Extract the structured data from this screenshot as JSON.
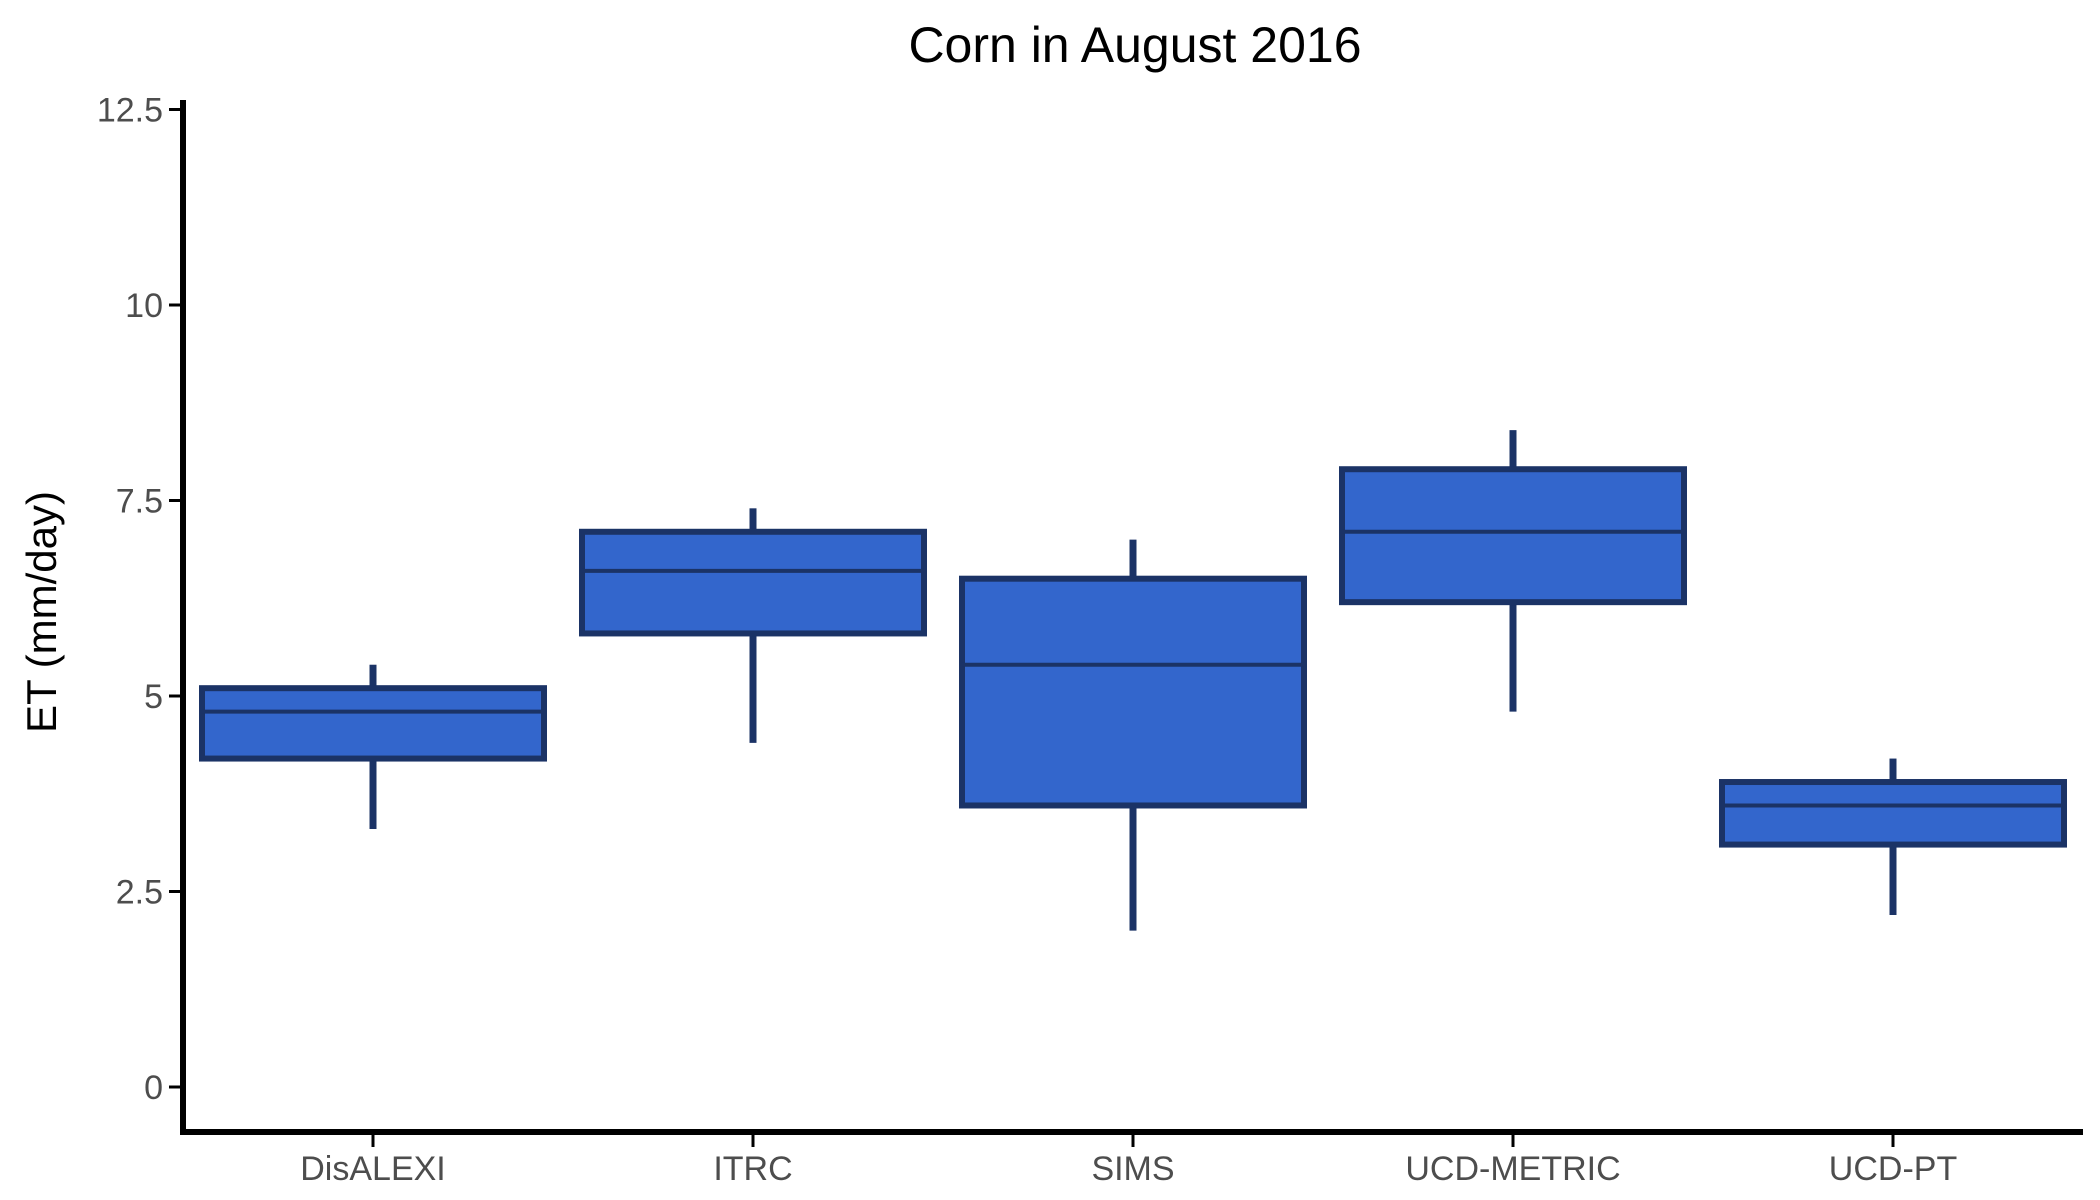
{
  "chart_data": {
    "type": "box",
    "title": "Corn in August 2016",
    "xlabel": "",
    "ylabel": "ET (mm/day)",
    "ylim": [
      0,
      12.5
    ],
    "y_ticks": [
      "0",
      "2.5",
      "5",
      "7.5",
      "10",
      "12.5"
    ],
    "grid": false,
    "categories": [
      "DisALEXI",
      "ITRC",
      "SIMS",
      "UCD-METRIC",
      "UCD-PT"
    ],
    "series": [
      {
        "boxes": [
          {
            "category": "DisALEXI",
            "min": 3.3,
            "q1": 4.2,
            "median": 4.8,
            "q3": 5.1,
            "max": 5.4
          },
          {
            "category": "ITRC",
            "min": 4.4,
            "q1": 5.8,
            "median": 6.6,
            "q3": 7.1,
            "max": 7.4
          },
          {
            "category": "SIMS",
            "min": 2.0,
            "q1": 3.6,
            "median": 5.4,
            "q3": 6.5,
            "max": 7.0
          },
          {
            "category": "UCD-METRIC",
            "min": 4.8,
            "q1": 6.2,
            "median": 7.1,
            "q3": 7.9,
            "max": 8.4
          },
          {
            "category": "UCD-PT",
            "min": 2.2,
            "q1": 3.1,
            "median": 3.6,
            "q3": 3.9,
            "max": 4.2
          }
        ]
      }
    ],
    "colors": {
      "fill": "#3366cc",
      "stroke": "#1b3366",
      "axis": "#000000",
      "tick_text": "#4d4d4d"
    }
  }
}
